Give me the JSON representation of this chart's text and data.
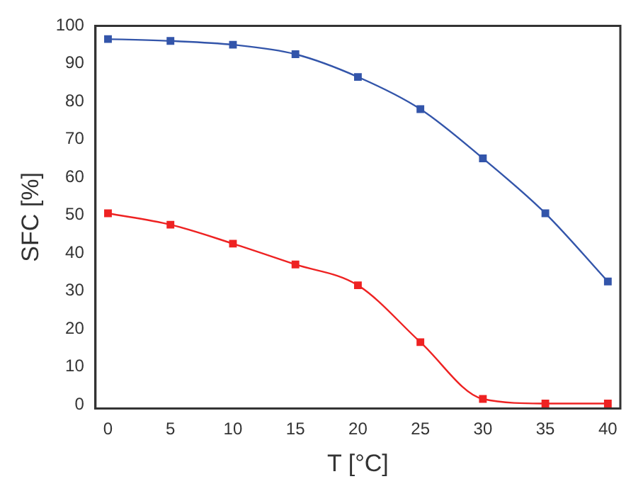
{
  "chart_data": {
    "type": "line",
    "xlabel": "T [°C]",
    "ylabel": "SFC [%]",
    "x": [
      0,
      5,
      10,
      15,
      20,
      25,
      30,
      35,
      40
    ],
    "series": [
      {
        "color": "#3355aa",
        "values": [
          96.5,
          96,
          95,
          92.5,
          86.5,
          78,
          65,
          50.5,
          32.5
        ]
      },
      {
        "color": "#ee2222",
        "values": [
          50.5,
          47.5,
          42.5,
          37,
          31.5,
          16.5,
          1.5,
          0.3,
          0.3
        ]
      }
    ],
    "xlim": [
      -1,
      41
    ],
    "xticks": [
      0,
      5,
      10,
      15,
      20,
      25,
      30,
      35,
      40
    ],
    "ylim": [
      -1,
      100
    ],
    "yticks": [
      0,
      10,
      20,
      30,
      40,
      50,
      60,
      70,
      80,
      90,
      100
    ],
    "grid": false,
    "legend": false,
    "marker": "square",
    "line_style": "solid"
  }
}
